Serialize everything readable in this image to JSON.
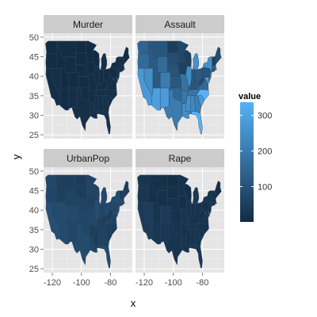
{
  "chart_data": {
    "type": "choropleth_map",
    "facets": [
      "Murder",
      "Assault",
      "UrbanPop",
      "Rape"
    ],
    "xlabel": "x",
    "ylabel": "y",
    "x_ticks": [
      -120,
      -100,
      -80
    ],
    "y_ticks": [
      25,
      30,
      35,
      40,
      45,
      50
    ],
    "xlim": [
      -126,
      -65
    ],
    "ylim": [
      24,
      51
    ],
    "legend": {
      "title": "value",
      "ticks": [
        100,
        200,
        300
      ],
      "range": [
        0.8,
        337
      ],
      "low_color": "#132B43",
      "high_color": "#56B1F7",
      "placement": "right"
    },
    "grid": true,
    "state_values": {
      "Murder": {
        "AL": 13.2,
        "AZ": 8.1,
        "AR": 8.8,
        "CA": 9.0,
        "CO": 7.9,
        "CT": 3.3,
        "DE": 5.9,
        "FL": 15.4,
        "GA": 17.4,
        "ID": 2.6,
        "IL": 10.4,
        "IN": 7.2,
        "IA": 2.2,
        "KS": 6.0,
        "KY": 9.7,
        "LA": 15.4,
        "ME": 2.1,
        "MD": 11.3,
        "MA": 4.4,
        "MI": 12.1,
        "MN": 2.7,
        "MS": 16.1,
        "MO": 9.0,
        "MT": 6.0,
        "NE": 4.3,
        "NV": 12.2,
        "NH": 2.1,
        "NJ": 7.4,
        "NM": 11.4,
        "NY": 11.1,
        "NC": 13.0,
        "ND": 0.8,
        "OH": 7.3,
        "OK": 6.6,
        "OR": 4.9,
        "PA": 6.3,
        "RI": 3.4,
        "SC": 14.4,
        "SD": 3.8,
        "TN": 13.2,
        "TX": 12.7,
        "UT": 3.2,
        "VT": 2.2,
        "VA": 8.5,
        "WA": 4.0,
        "WV": 5.7,
        "WI": 2.6,
        "WY": 6.8
      },
      "Assault": {
        "AL": 236,
        "AZ": 294,
        "AR": 190,
        "CA": 276,
        "CO": 204,
        "CT": 110,
        "DE": 238,
        "FL": 335,
        "GA": 211,
        "ID": 120,
        "IL": 249,
        "IN": 113,
        "IA": 56,
        "KS": 115,
        "KY": 109,
        "LA": 249,
        "ME": 83,
        "MD": 300,
        "MA": 149,
        "MI": 255,
        "MN": 72,
        "MS": 259,
        "MO": 178,
        "MT": 109,
        "NE": 102,
        "NV": 252,
        "NH": 57,
        "NJ": 159,
        "NM": 285,
        "NY": 254,
        "NC": 337,
        "ND": 45,
        "OH": 120,
        "OK": 151,
        "OR": 159,
        "PA": 106,
        "RI": 174,
        "SC": 279,
        "SD": 86,
        "TN": 188,
        "TX": 201,
        "UT": 120,
        "VT": 48,
        "VA": 156,
        "WA": 145,
        "WV": 81,
        "WI": 53,
        "WY": 161
      },
      "UrbanPop": {
        "AL": 58,
        "AZ": 80,
        "AR": 50,
        "CA": 91,
        "CO": 78,
        "CT": 77,
        "DE": 72,
        "FL": 80,
        "GA": 60,
        "ID": 54,
        "IL": 83,
        "IN": 65,
        "IA": 57,
        "KS": 66,
        "KY": 52,
        "LA": 66,
        "ME": 51,
        "MD": 67,
        "MA": 85,
        "MI": 74,
        "MN": 66,
        "MS": 44,
        "MO": 70,
        "MT": 53,
        "NE": 62,
        "NV": 81,
        "NH": 56,
        "NJ": 89,
        "NM": 70,
        "NY": 86,
        "NC": 45,
        "ND": 44,
        "OH": 75,
        "OK": 68,
        "OR": 67,
        "PA": 72,
        "RI": 87,
        "SC": 48,
        "SD": 45,
        "TN": 59,
        "TX": 80,
        "UT": 80,
        "VT": 32,
        "VA": 63,
        "WA": 73,
        "WV": 39,
        "WI": 66,
        "WY": 60
      },
      "Rape": {
        "AL": 21.2,
        "AZ": 31.0,
        "AR": 19.5,
        "CA": 40.6,
        "CO": 38.7,
        "CT": 11.1,
        "DE": 15.8,
        "FL": 31.9,
        "GA": 25.8,
        "ID": 14.2,
        "IL": 24.0,
        "IN": 21.0,
        "IA": 11.3,
        "KS": 18.0,
        "KY": 16.3,
        "LA": 22.2,
        "ME": 7.8,
        "MD": 27.8,
        "MA": 16.3,
        "MI": 35.1,
        "MN": 14.9,
        "MS": 17.1,
        "MO": 28.2,
        "MT": 16.4,
        "NE": 16.5,
        "NV": 46.0,
        "NH": 9.5,
        "NJ": 18.8,
        "NM": 32.1,
        "NY": 26.1,
        "NC": 16.1,
        "ND": 7.3,
        "OH": 21.4,
        "OK": 20.0,
        "OR": 29.3,
        "PA": 14.9,
        "RI": 8.3,
        "SC": 22.5,
        "SD": 12.8,
        "TN": 26.9,
        "TX": 25.5,
        "UT": 22.9,
        "VT": 11.2,
        "VA": 20.7,
        "WA": 26.2,
        "WV": 9.3,
        "WI": 10.8,
        "WY": 15.6
      }
    }
  }
}
